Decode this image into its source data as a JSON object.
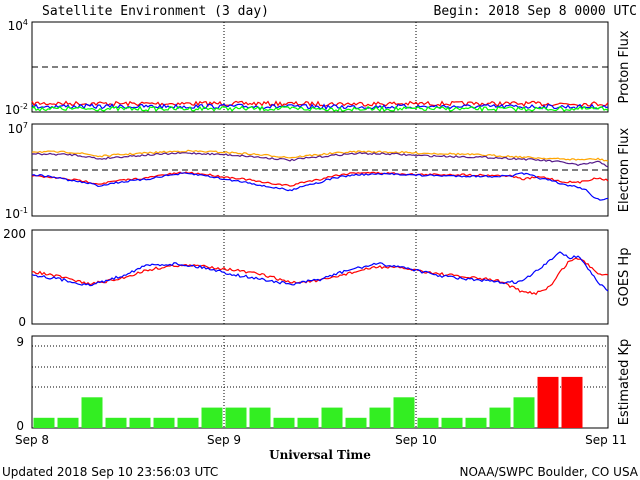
{
  "header": {
    "title": "Satellite Environment (3 day)",
    "begin": "Begin:  2018 Sep 8 0000 UTC"
  },
  "footer": {
    "updated": "Updated 2018 Sep 10 23:56:03 UTC",
    "credit": "NOAA/SWPC Boulder, CO USA"
  },
  "xaxis": {
    "label": "Universal Time",
    "ticks": [
      "Sep 8",
      "Sep 9",
      "Sep 10",
      "Sep 11"
    ]
  },
  "colors": {
    "red": "#ff0000",
    "blue": "#0000ff",
    "green": "#00ff00",
    "orange": "#ffa500",
    "purple": "#551a8b",
    "kp_green": "#33ee22",
    "kp_red": "#ff0000"
  },
  "chart_data": [
    {
      "type": "line",
      "name": "proton",
      "ylabel": "Proton Flux",
      "yscale": "log",
      "ylim": [
        0.01,
        10000
      ],
      "ytick_labels": {
        "top": "10^4",
        "bottom": "10^-2"
      },
      "x_range_days": [
        0,
        3
      ],
      "reference_line": 10,
      "series": [
        {
          "color": "red",
          "values": [
            [
              0,
              0.038
            ],
            [
              0.5,
              0.036
            ],
            [
              1,
              0.037
            ],
            [
              1.5,
              0.035
            ],
            [
              2,
              0.036
            ],
            [
              2.5,
              0.036
            ],
            [
              3,
              0.035
            ]
          ]
        },
        {
          "color": "blue",
          "values": [
            [
              0,
              0.024
            ],
            [
              0.5,
              0.023
            ],
            [
              1,
              0.024
            ],
            [
              1.5,
              0.022
            ],
            [
              2,
              0.023
            ],
            [
              2.5,
              0.023
            ],
            [
              3,
              0.022
            ]
          ]
        },
        {
          "color": "green",
          "values": [
            [
              0,
              0.017
            ],
            [
              0.5,
              0.016
            ],
            [
              1,
              0.017
            ],
            [
              1.5,
              0.016
            ],
            [
              2,
              0.016
            ],
            [
              2.5,
              0.016
            ],
            [
              3,
              0.016
            ]
          ]
        }
      ]
    },
    {
      "type": "line",
      "name": "electron",
      "ylabel": "Electron Flux",
      "yscale": "log",
      "ylim": [
        0.1,
        10000000
      ],
      "ytick_labels": {
        "top": "10^7",
        "bottom": "10^-1"
      },
      "x_range_days": [
        0,
        3
      ],
      "reference_line": 1000,
      "series": [
        {
          "color": "orange",
          "values": [
            [
              0,
              40000
            ],
            [
              0.2,
              35000
            ],
            [
              0.35,
              15000
            ],
            [
              0.6,
              30000
            ],
            [
              0.8,
              45000
            ],
            [
              1.0,
              35000
            ],
            [
              1.2,
              20000
            ],
            [
              1.35,
              12000
            ],
            [
              1.5,
              22000
            ],
            [
              1.7,
              40000
            ],
            [
              1.9,
              35000
            ],
            [
              2.0,
              30000
            ],
            [
              2.2,
              25000
            ],
            [
              2.4,
              18000
            ],
            [
              2.6,
              12000
            ],
            [
              2.75,
              9000
            ],
            [
              2.85,
              8000
            ],
            [
              2.95,
              9000
            ],
            [
              3,
              6000
            ]
          ]
        },
        {
          "color": "purple",
          "values": [
            [
              0,
              25000
            ],
            [
              0.2,
              22000
            ],
            [
              0.35,
              9000
            ],
            [
              0.6,
              20000
            ],
            [
              0.8,
              30000
            ],
            [
              1.0,
              22000
            ],
            [
              1.2,
              12000
            ],
            [
              1.35,
              7000
            ],
            [
              1.5,
              14000
            ],
            [
              1.7,
              28000
            ],
            [
              1.9,
              24000
            ],
            [
              2.0,
              18000
            ],
            [
              2.2,
              15000
            ],
            [
              2.4,
              12000
            ],
            [
              2.6,
              8000
            ],
            [
              2.75,
              5000
            ],
            [
              2.85,
              2500
            ],
            [
              2.95,
              5000
            ],
            [
              3,
              2000
            ]
          ]
        },
        {
          "color": "red",
          "values": [
            [
              0,
              300
            ],
            [
              0.2,
              150
            ],
            [
              0.35,
              60
            ],
            [
              0.6,
              200
            ],
            [
              0.8,
              600
            ],
            [
              1.0,
              250
            ],
            [
              1.2,
              80
            ],
            [
              1.35,
              40
            ],
            [
              1.5,
              150
            ],
            [
              1.7,
              600
            ],
            [
              1.9,
              500
            ],
            [
              2.0,
              400
            ],
            [
              2.2,
              400
            ],
            [
              2.4,
              350
            ],
            [
              2.5,
              300
            ],
            [
              2.55,
              150
            ],
            [
              2.65,
              250
            ],
            [
              2.75,
              100
            ],
            [
              2.85,
              80
            ],
            [
              2.95,
              200
            ],
            [
              3,
              120
            ]
          ]
        },
        {
          "color": "blue",
          "values": [
            [
              0,
              400
            ],
            [
              0.2,
              120
            ],
            [
              0.35,
              40
            ],
            [
              0.6,
              150
            ],
            [
              0.8,
              500
            ],
            [
              1.0,
              150
            ],
            [
              1.2,
              40
            ],
            [
              1.35,
              15
            ],
            [
              1.5,
              80
            ],
            [
              1.7,
              400
            ],
            [
              1.9,
              450
            ],
            [
              2.0,
              350
            ],
            [
              2.2,
              300
            ],
            [
              2.4,
              280
            ],
            [
              2.5,
              300
            ],
            [
              2.55,
              500
            ],
            [
              2.65,
              180
            ],
            [
              2.75,
              60
            ],
            [
              2.85,
              30
            ],
            [
              2.92,
              5
            ],
            [
              2.96,
              2
            ],
            [
              3,
              3
            ]
          ]
        }
      ]
    },
    {
      "type": "line",
      "name": "goes_hp",
      "ylabel": "GOES Hp",
      "yscale": "linear",
      "ylim": [
        0,
        200
      ],
      "ytick_labels": {
        "top": "200",
        "bottom": "0"
      },
      "x_range_days": [
        0,
        3
      ],
      "series": [
        {
          "color": "red",
          "values": [
            [
              0,
              112
            ],
            [
              0.15,
              100
            ],
            [
              0.3,
              85
            ],
            [
              0.45,
              95
            ],
            [
              0.6,
              115
            ],
            [
              0.75,
              125
            ],
            [
              0.9,
              123
            ],
            [
              1.05,
              115
            ],
            [
              1.2,
              105
            ],
            [
              1.35,
              88
            ],
            [
              1.5,
              92
            ],
            [
              1.65,
              108
            ],
            [
              1.8,
              122
            ],
            [
              1.95,
              118
            ],
            [
              2.1,
              108
            ],
            [
              2.25,
              100
            ],
            [
              2.4,
              94
            ],
            [
              2.45,
              90
            ],
            [
              2.55,
              68
            ],
            [
              2.62,
              65
            ],
            [
              2.7,
              80
            ],
            [
              2.75,
              110
            ],
            [
              2.8,
              135
            ],
            [
              2.85,
              140
            ],
            [
              2.9,
              125
            ],
            [
              2.95,
              108
            ],
            [
              3,
              105
            ]
          ]
        },
        {
          "color": "blue",
          "values": [
            [
              0,
              105
            ],
            [
              0.15,
              95
            ],
            [
              0.3,
              82
            ],
            [
              0.45,
              100
            ],
            [
              0.6,
              125
            ],
            [
              0.75,
              128
            ],
            [
              0.9,
              120
            ],
            [
              1.05,
              105
            ],
            [
              1.2,
              95
            ],
            [
              1.35,
              84
            ],
            [
              1.5,
              95
            ],
            [
              1.65,
              115
            ],
            [
              1.8,
              128
            ],
            [
              1.95,
              120
            ],
            [
              2.1,
              104
            ],
            [
              2.25,
              96
            ],
            [
              2.4,
              90
            ],
            [
              2.45,
              88
            ],
            [
              2.55,
              90
            ],
            [
              2.62,
              110
            ],
            [
              2.7,
              135
            ],
            [
              2.75,
              155
            ],
            [
              2.8,
              140
            ],
            [
              2.85,
              145
            ],
            [
              2.9,
              115
            ],
            [
              2.95,
              88
            ],
            [
              3,
              70
            ]
          ]
        }
      ]
    },
    {
      "type": "bar",
      "name": "kp",
      "ylabel": "Estimated Kp",
      "ylim": [
        0,
        9
      ],
      "ytick_labels": {
        "top": "9",
        "bottom": "0"
      },
      "interval_hours": 3,
      "values": [
        1,
        1,
        3,
        1,
        1,
        1,
        1,
        2,
        2,
        2,
        1,
        1,
        2,
        1,
        2,
        3,
        1,
        1,
        1,
        2,
        3,
        5,
        5,
        0
      ],
      "colors": [
        "green",
        "green",
        "green",
        "green",
        "green",
        "green",
        "green",
        "green",
        "green",
        "green",
        "green",
        "green",
        "green",
        "green",
        "green",
        "green",
        "green",
        "green",
        "green",
        "green",
        "green",
        "red",
        "red",
        "green"
      ]
    }
  ]
}
